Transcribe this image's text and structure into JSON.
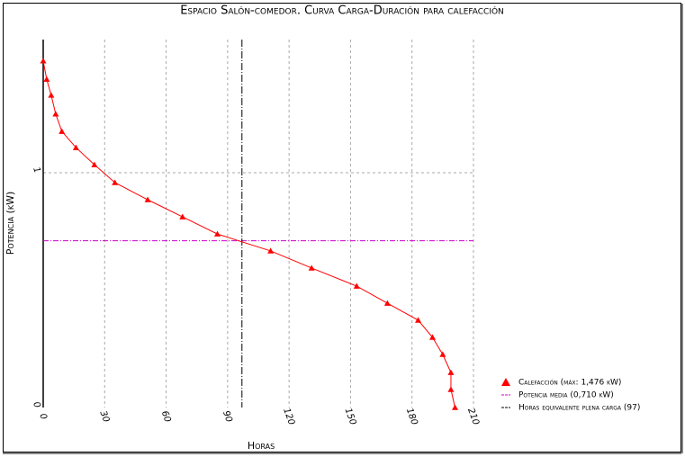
{
  "chart_data": {
    "type": "line",
    "title": "Espacio Salón-comedor. Curva Carga-Duración para calefacción",
    "x_label": "Horas",
    "y_label": "Potencia (kW)",
    "xlim": [
      0,
      210
    ],
    "xticks": [
      0,
      30,
      60,
      90,
      120,
      150,
      180,
      210
    ],
    "ylim": [
      0,
      1.567
    ],
    "yticks": [
      0,
      1
    ],
    "grid": true,
    "series": [
      {
        "name": "Calefacción (máx: 1,476 kW)",
        "color": "#ff0000",
        "x": [
          0,
          1.7,
          3.9,
          6.1,
          9.1,
          16,
          25,
          35,
          51,
          68,
          85,
          111,
          131,
          153,
          168,
          183,
          190,
          195,
          199,
          199,
          201
        ],
        "values": [
          1.476,
          1.398,
          1.33,
          1.25,
          1.176,
          1.107,
          1.034,
          0.958,
          0.885,
          0.812,
          0.739,
          0.667,
          0.594,
          0.517,
          0.444,
          0.372,
          0.299,
          0.226,
          0.149,
          0.077,
          0
        ]
      }
    ],
    "reference_lines": [
      {
        "name": "Potencia media (0,710 kW)",
        "axis": "y",
        "value": 0.71,
        "color": "#cc00cc"
      },
      {
        "name": "Horas equivalente plena carga (97)",
        "axis": "x",
        "value": 97,
        "color": "#000000"
      }
    ]
  }
}
